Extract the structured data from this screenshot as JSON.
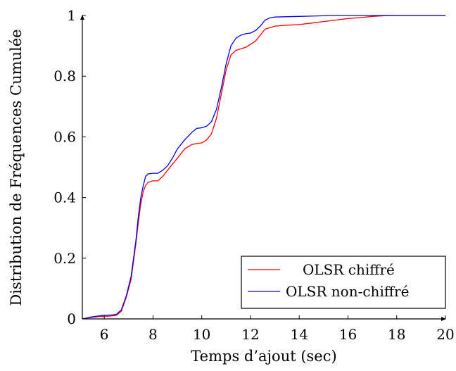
{
  "chart_data": {
    "type": "line",
    "title": "",
    "xlabel": "Temps d’ajout (sec)",
    "ylabel": "Distribution de Fréquences Cumulée",
    "xlim": [
      5.1,
      20
    ],
    "ylim": [
      0,
      1
    ],
    "x_ticks": [
      "6",
      "8",
      "10",
      "12",
      "14",
      "16",
      "18",
      "20"
    ],
    "y_ticks": [
      "0",
      "0.2",
      "0.4",
      "0.6",
      "0.8",
      "1"
    ],
    "grid": false,
    "legend_position": "bottom-right",
    "series": [
      {
        "name": "OLSR chiffré",
        "color": "#ff0000",
        "x": [
          5.1,
          5.5,
          5.8,
          6.0,
          6.3,
          6.5,
          6.7,
          6.9,
          7.1,
          7.3,
          7.4,
          7.5,
          7.6,
          7.7,
          7.8,
          8.0,
          8.2,
          8.4,
          8.6,
          8.8,
          9.0,
          9.3,
          9.6,
          9.8,
          10.0,
          10.2,
          10.4,
          10.6,
          10.8,
          11.0,
          11.2,
          11.4,
          11.6,
          11.8,
          12.0,
          12.2,
          12.4,
          12.6,
          12.8,
          13.0,
          13.5,
          14.0,
          14.5,
          15.0,
          15.5,
          16.0,
          16.5,
          17.0,
          17.5,
          18.0,
          19.0,
          20.0
        ],
        "y": [
          0.0,
          0.005,
          0.008,
          0.008,
          0.01,
          0.012,
          0.025,
          0.07,
          0.13,
          0.25,
          0.32,
          0.38,
          0.42,
          0.44,
          0.45,
          0.455,
          0.455,
          0.47,
          0.49,
          0.51,
          0.53,
          0.56,
          0.575,
          0.578,
          0.58,
          0.59,
          0.61,
          0.66,
          0.74,
          0.82,
          0.87,
          0.885,
          0.89,
          0.895,
          0.905,
          0.915,
          0.935,
          0.955,
          0.96,
          0.965,
          0.968,
          0.97,
          0.975,
          0.98,
          0.985,
          0.99,
          0.993,
          0.997,
          0.999,
          1.0,
          1.0,
          1.0
        ]
      },
      {
        "name": "OLSR non-chiffré",
        "color": "#0000ff",
        "x": [
          5.1,
          5.5,
          5.8,
          6.0,
          6.3,
          6.5,
          6.7,
          6.9,
          7.1,
          7.3,
          7.4,
          7.5,
          7.6,
          7.7,
          7.8,
          8.0,
          8.2,
          8.4,
          8.6,
          8.8,
          9.0,
          9.3,
          9.6,
          9.8,
          10.0,
          10.2,
          10.4,
          10.6,
          10.8,
          11.0,
          11.2,
          11.4,
          11.6,
          11.8,
          12.0,
          12.2,
          12.4,
          12.6,
          12.8,
          13.0,
          13.5,
          14.0,
          14.5,
          15.0,
          15.5,
          16.0,
          16.5,
          17.0,
          17.5,
          18.0,
          19.0,
          20.0
        ],
        "y": [
          0.0,
          0.007,
          0.01,
          0.012,
          0.013,
          0.015,
          0.03,
          0.075,
          0.14,
          0.26,
          0.34,
          0.4,
          0.44,
          0.47,
          0.478,
          0.48,
          0.48,
          0.49,
          0.505,
          0.53,
          0.56,
          0.59,
          0.615,
          0.628,
          0.63,
          0.635,
          0.65,
          0.69,
          0.76,
          0.84,
          0.9,
          0.925,
          0.935,
          0.94,
          0.942,
          0.95,
          0.965,
          0.985,
          0.992,
          0.995,
          0.996,
          0.997,
          0.998,
          0.999,
          1.0,
          1.0,
          1.0,
          1.0,
          1.0,
          1.0,
          1.0,
          1.0
        ]
      }
    ]
  }
}
